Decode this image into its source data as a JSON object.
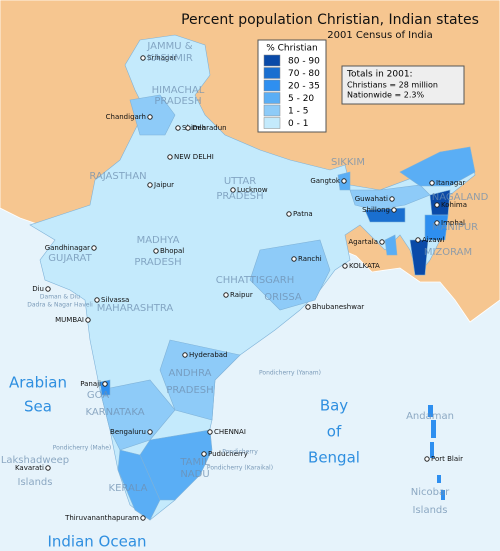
{
  "title": "Percent population Christian, Indian states",
  "subtitle": "2001 Census of India",
  "legend": {
    "title": "% Christian",
    "items": [
      {
        "label": "80 - 90",
        "color": "#0a4aa8"
      },
      {
        "label": "70 - 80",
        "color": "#1a6fd0"
      },
      {
        "label": "20 - 35",
        "color": "#2e8ff0"
      },
      {
        "label": "5 - 20",
        "color": "#5aaef5"
      },
      {
        "label": "1 - 5",
        "color": "#8ecbf8"
      },
      {
        "label": "0 - 1",
        "color": "#c4eafc"
      }
    ]
  },
  "totals": {
    "heading": "Totals in 2001:",
    "lines": [
      "Christians = 28 million",
      "Nationwide = 2.3%"
    ]
  },
  "cities": [
    "Srinagar",
    "Shimla",
    "Chandigarh",
    "Dehradun",
    "NEW DELHI",
    "Lucknow",
    "Jaipur",
    "Gangtok",
    "Itanagar",
    "Guwahati",
    "Shillong",
    "Kohima",
    "Imphal",
    "Agartala",
    "Aizawl",
    "Patna",
    "Ranchi",
    "KOLKATA",
    "Gandhinagar",
    "Bhopal",
    "Raipur",
    "Bhubaneshwar",
    "Diu",
    "Silvassa",
    "MUMBAI",
    "Hyderabad",
    "Panaji",
    "Bengaluru",
    "CHENNAI",
    "Puducherry",
    "Kavarati",
    "Thiruvananthapuram",
    "Port Blair"
  ],
  "regions": [
    "JAMMU &",
    "KASHMIR",
    "HIMACHAL",
    "PRADESH",
    "RAJASTHAN",
    "UTTAR",
    "PRADESH",
    "GUJARAT",
    "MADHYA",
    "PRADESH",
    "CHHATTISGARH",
    "ORISSA",
    "MAHARASHTRA",
    "ANDHRA",
    "PRADESH",
    "KARNATAKA",
    "GOA",
    "TAMIL",
    "NADU",
    "KERALA",
    "SIKKIM",
    "NAGALAND",
    "MANIPUR",
    "MIZORAM",
    "Lakshadweep",
    "Islands",
    "Andaman",
    "Nicobar",
    "Islands"
  ],
  "minor_labels": [
    "Daman & Diu",
    "Dadra & Nagar Haveli",
    "Pondicherry (Yanam)",
    "Pondicherry (Mahe)",
    "Pondicherry (Karaikal)",
    "Pondicherry"
  ],
  "seas": [
    "Arabian",
    "Sea",
    "Bay",
    "of",
    "Bengal",
    "Indian Ocean"
  ]
}
